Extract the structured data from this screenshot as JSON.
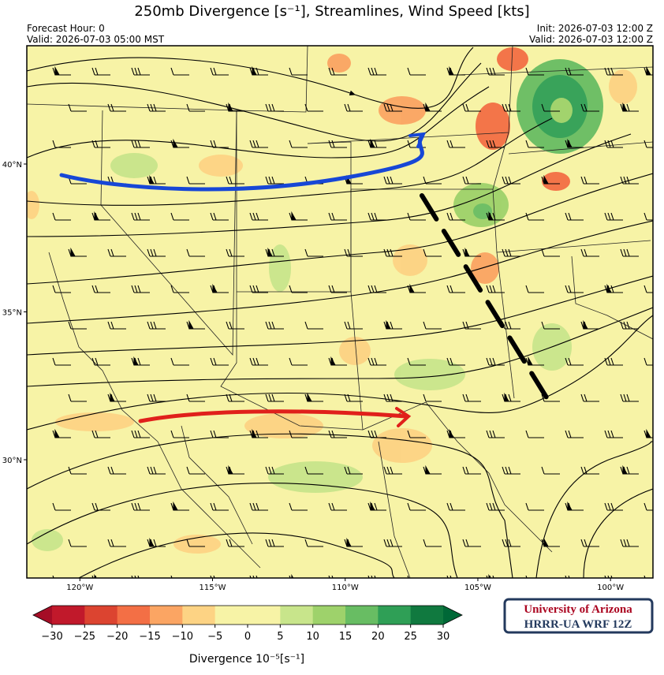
{
  "header": {
    "title": "250mb Divergence [s⁻¹], Streamlines, Wind Speed [kts]",
    "forecast_hour": "Forecast Hour: 0",
    "valid_local": "Valid: 2026-07-03 05:00 MST",
    "init": "Init: 2026-07-03 12:00 Z",
    "valid_utc": "Valid: 2026-07-03 12:00 Z"
  },
  "map": {
    "lon_range": [
      -122,
      -98.4
    ],
    "lat_range": [
      26,
      44
    ],
    "lon_ticks": [
      {
        "value": -120,
        "label": "120°W"
      },
      {
        "value": -115,
        "label": "115°W"
      },
      {
        "value": -110,
        "label": "110°W"
      },
      {
        "value": -105,
        "label": "105°W"
      },
      {
        "value": -100,
        "label": "100°W"
      }
    ],
    "lat_ticks": [
      {
        "value": 40,
        "label": "40°N"
      },
      {
        "value": 35,
        "label": "35°N"
      },
      {
        "value": 30,
        "label": "30°N"
      }
    ]
  },
  "colorbar": {
    "label": "Divergence 10⁻⁵[s⁻¹]",
    "ticks": [
      {
        "value": -30,
        "label": "−30"
      },
      {
        "value": -25,
        "label": "−25"
      },
      {
        "value": -20,
        "label": "−20"
      },
      {
        "value": -15,
        "label": "−15"
      },
      {
        "value": -10,
        "label": "−10"
      },
      {
        "value": -5,
        "label": "−5"
      },
      0,
      5,
      10,
      15,
      20,
      25,
      30
    ],
    "colors": [
      "#c1192b",
      "#dc4430",
      "#f36f45",
      "#fba563",
      "#fdd384",
      "#f7f3a6",
      "#f7f3a6",
      "#c8e58b",
      "#9ed26b",
      "#68bd63",
      "#2f9f56",
      "#10793f"
    ],
    "extend_colors": [
      "#a50d26",
      "#006837"
    ]
  },
  "logo": {
    "line1": "University of Arizona",
    "line2": "HRRR-UA WRF 12Z"
  }
}
